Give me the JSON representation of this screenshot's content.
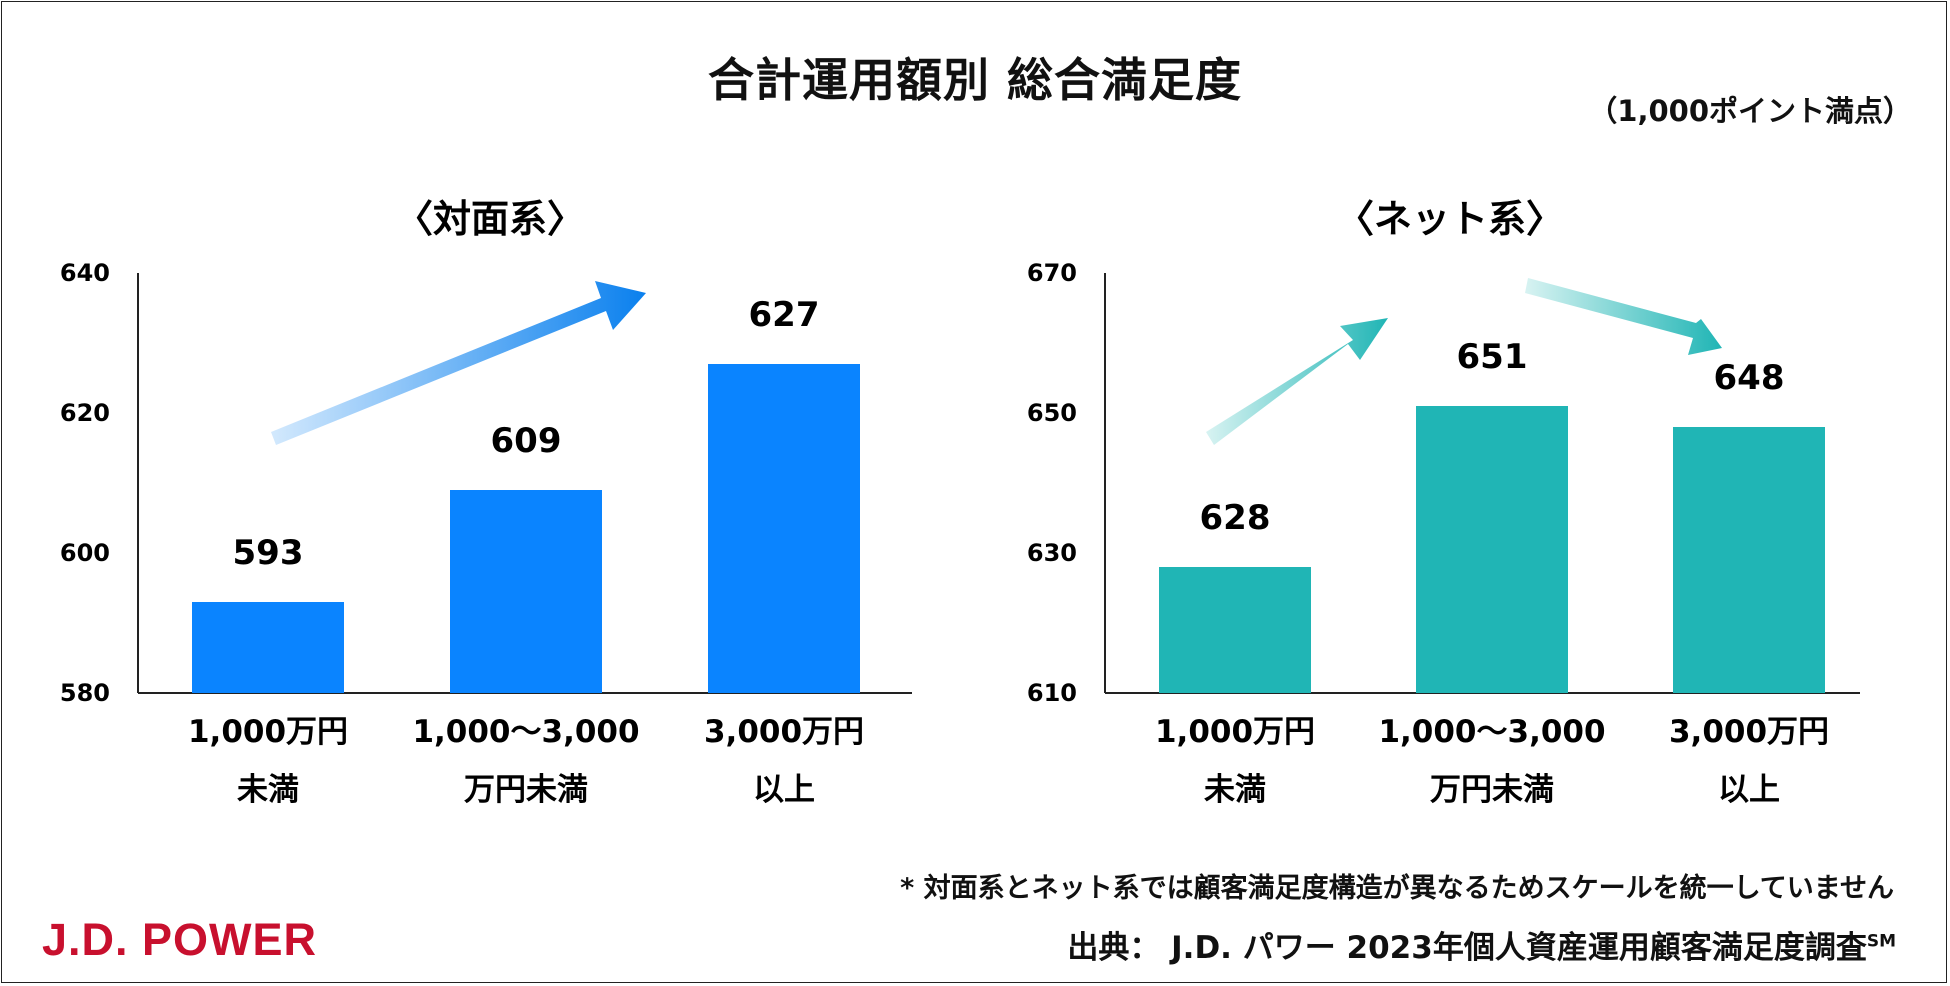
{
  "title": "合計運用額別 総合満足度",
  "unit_note": "（1,000ポイント満点）",
  "footnote": "* 対面系とネット系では顧客満足度構造が異なるためスケールを統一していません",
  "source": {
    "text": "出典：  J.D. パワー 2023年個人資産運用顧客満足度調査",
    "mark": "SM"
  },
  "logo": "J.D. POWER",
  "colors": {
    "face_to_face": "#0a84ff",
    "online": "#20b5b5"
  },
  "chart_data": [
    {
      "type": "bar",
      "title": "〈対面系〉",
      "categories": [
        [
          "1,000万円",
          "未満"
        ],
        [
          "1,000～3,000",
          "万円未満"
        ],
        [
          "3,000万円",
          "以上"
        ]
      ],
      "values": [
        593,
        609,
        627
      ],
      "data_labels": [
        "593",
        "609",
        "627"
      ],
      "ylim": [
        580,
        640
      ],
      "yticks": [
        "580",
        "600",
        "620",
        "640"
      ],
      "ytick_values": [
        580,
        600,
        620,
        640
      ],
      "color": "#0a84ff",
      "grid": false
    },
    {
      "type": "bar",
      "title": "〈ネット系〉",
      "categories": [
        [
          "1,000万円",
          "未満"
        ],
        [
          "1,000～3,000",
          "万円未満"
        ],
        [
          "3,000万円",
          "以上"
        ]
      ],
      "values": [
        628,
        651,
        648
      ],
      "data_labels": [
        "628",
        "651",
        "648"
      ],
      "ylim": [
        610,
        670
      ],
      "yticks": [
        "610",
        "630",
        "650",
        "670"
      ],
      "ytick_values": [
        610,
        630,
        650,
        670
      ],
      "color": "#20b5b5",
      "grid": false
    }
  ]
}
